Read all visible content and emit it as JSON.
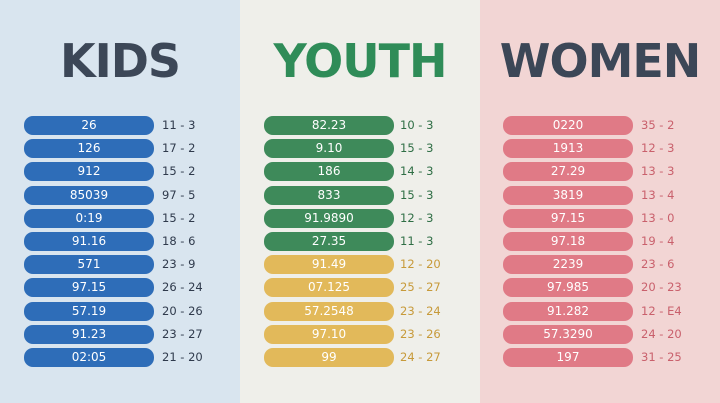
{
  "columns": [
    {
      "title": "KIDS",
      "rows": [
        {
          "size": "26",
          "range": "11 - 3"
        },
        {
          "size": "126",
          "range": "17 - 2"
        },
        {
          "size": "912",
          "range": "15 - 2"
        },
        {
          "size": "85039",
          "range": "97 - 5"
        },
        {
          "size": "0:19",
          "range": "15 - 2"
        },
        {
          "size": "91.16",
          "range": "18 - 6"
        },
        {
          "size": "571",
          "range": "23 - 9"
        },
        {
          "size": "97.15",
          "range": "26 - 24"
        },
        {
          "size": "57.19",
          "range": "20 - 26"
        },
        {
          "size": "91.23",
          "range": "23 - 27"
        },
        {
          "size": "02:05",
          "range": "21 - 20"
        }
      ]
    },
    {
      "title": "YOUTH",
      "rows": [
        {
          "size": "82.23",
          "range": "10 - 3"
        },
        {
          "size": "9.10",
          "range": "15 - 3"
        },
        {
          "size": "186",
          "range": "14 - 3"
        },
        {
          "size": "833",
          "range": "15 - 3"
        },
        {
          "size": "91.9890",
          "range": "12 - 3"
        },
        {
          "size": "27.35",
          "range": "11 - 3"
        },
        {
          "size": "91.49",
          "range": "12 - 20"
        },
        {
          "size": "07.125",
          "range": "25 - 27"
        },
        {
          "size": "57.2548",
          "range": "23 - 24"
        },
        {
          "size": "97.10",
          "range": "23 - 26"
        },
        {
          "size": "99",
          "range": "24 - 27"
        }
      ]
    },
    {
      "title": "WOMEN",
      "rows": [
        {
          "size": "0220",
          "range": "35 - 2"
        },
        {
          "size": "1913",
          "range": "12 - 3"
        },
        {
          "size": "27.29",
          "range": "13 - 3"
        },
        {
          "size": "3819",
          "range": "13 - 4"
        },
        {
          "size": "97.15",
          "range": "13 - 0"
        },
        {
          "size": "97.18",
          "range": "19 - 4"
        },
        {
          "size": "2239",
          "range": "23 - 6"
        },
        {
          "size": "97.985",
          "range": "20 - 23"
        },
        {
          "size": "91.282",
          "range": "12 - E4"
        },
        {
          "size": "57.3290",
          "range": "24 - 20"
        },
        {
          "size": "197",
          "range": "31 - 25"
        }
      ]
    }
  ]
}
